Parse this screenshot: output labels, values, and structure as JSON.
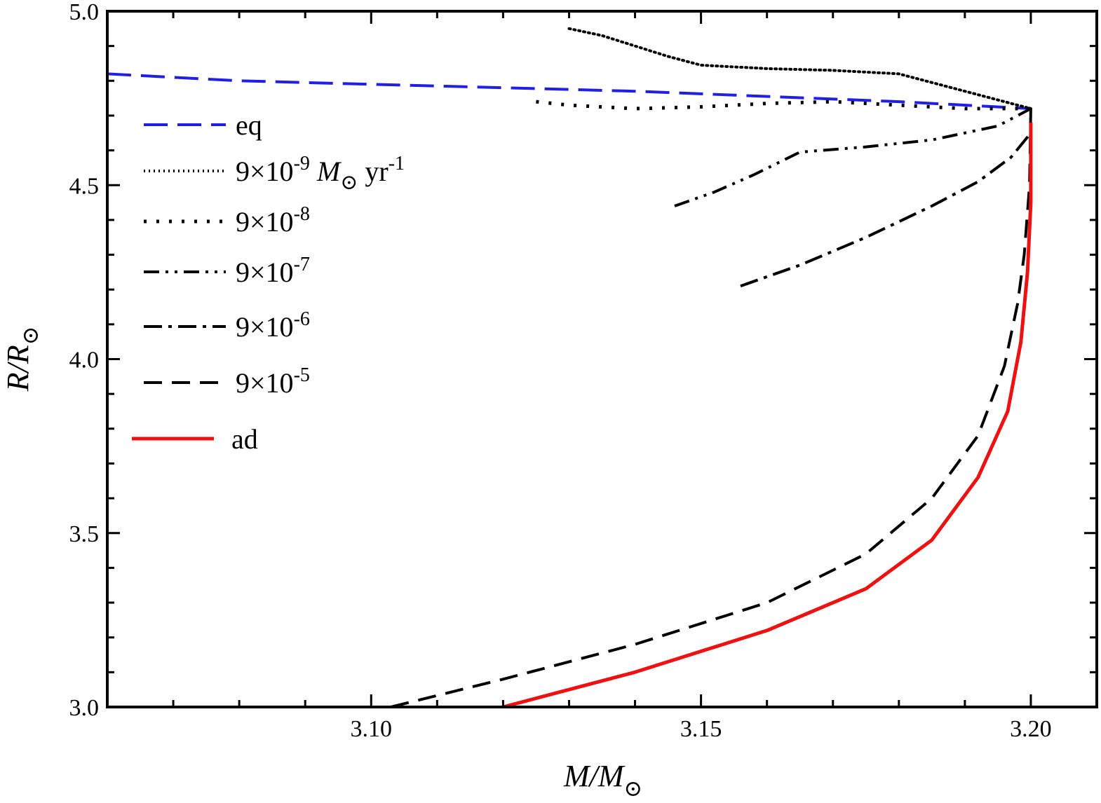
{
  "chart_data": {
    "type": "line",
    "title": "",
    "xlabel": {
      "main": "M/M",
      "sub": "⊙"
    },
    "ylabel": {
      "main": "R/R",
      "sub": "⊙"
    },
    "xlim": [
      3.06,
      3.21
    ],
    "ylim": [
      3.0,
      5.0
    ],
    "grid": false,
    "legend_position": "upper-left",
    "x_ticks": [
      {
        "value": 3.1,
        "label": "3.10"
      },
      {
        "value": 3.15,
        "label": "3.15"
      },
      {
        "value": 3.2,
        "label": "3.20"
      }
    ],
    "y_ticks": [
      {
        "value": 3.0,
        "label": "3.0"
      },
      {
        "value": 3.5,
        "label": "3.5"
      },
      {
        "value": 4.0,
        "label": "4.0"
      },
      {
        "value": 4.5,
        "label": "4.5"
      },
      {
        "value": 5.0,
        "label": "5.0"
      }
    ],
    "series": [
      {
        "name": "eq",
        "legend": {
          "base": "eq"
        },
        "color": "#1f1fe6",
        "dash": "34,14",
        "width": 4,
        "x": [
          3.06,
          3.08,
          3.1,
          3.12,
          3.14,
          3.16,
          3.18,
          3.2
        ],
        "y": [
          4.82,
          4.8,
          4.79,
          4.78,
          4.77,
          4.755,
          4.74,
          4.72
        ]
      },
      {
        "name": "9e-9",
        "legend": {
          "base": "9×10",
          "exp": "-9",
          "unit_italic": "M",
          "unit_sub": "⊙",
          "unit_rest": "yr",
          "unit_exp": "-1"
        },
        "color": "#000000",
        "dash": "2,5",
        "width": 4,
        "x": [
          3.13,
          3.135,
          3.14,
          3.145,
          3.15,
          3.16,
          3.17,
          3.18,
          3.19,
          3.2
        ],
        "y": [
          4.95,
          4.93,
          4.9,
          4.87,
          4.845,
          4.835,
          4.83,
          4.82,
          4.77,
          4.72
        ]
      },
      {
        "name": "9e-8",
        "legend": {
          "base": "9×10",
          "exp": "-8"
        },
        "color": "#000000",
        "dash": "4,14",
        "width": 5,
        "x": [
          3.125,
          3.13,
          3.14,
          3.15,
          3.16,
          3.17,
          3.18,
          3.19,
          3.2
        ],
        "y": [
          4.74,
          4.73,
          4.72,
          4.725,
          4.735,
          4.74,
          4.73,
          4.72,
          4.72
        ]
      },
      {
        "name": "9e-7",
        "legend": {
          "base": "9×10",
          "exp": "-7"
        },
        "color": "#000000",
        "dash": "22,9,4,9,4,9",
        "width": 4,
        "x": [
          3.146,
          3.152,
          3.158,
          3.165,
          3.175,
          3.185,
          3.195,
          3.2
        ],
        "y": [
          4.44,
          4.48,
          4.53,
          4.595,
          4.61,
          4.63,
          4.67,
          4.72
        ]
      },
      {
        "name": "9e-6",
        "legend": {
          "base": "9×10",
          "exp": "-6"
        },
        "color": "#000000",
        "dash": "26,9,5,9",
        "width": 4,
        "x": [
          3.156,
          3.165,
          3.175,
          3.185,
          3.192,
          3.197,
          3.2
        ],
        "y": [
          4.21,
          4.27,
          4.35,
          4.44,
          4.51,
          4.58,
          4.65
        ]
      },
      {
        "name": "9e-5",
        "legend": {
          "base": "9×10",
          "exp": "-5"
        },
        "color": "#000000",
        "dash": "26,14",
        "width": 4,
        "x": [
          3.103,
          3.12,
          3.14,
          3.16,
          3.175,
          3.185,
          3.192,
          3.196,
          3.198,
          3.199,
          3.1998,
          3.2
        ],
        "y": [
          3.0,
          3.08,
          3.18,
          3.3,
          3.44,
          3.6,
          3.78,
          3.98,
          4.16,
          4.3,
          4.5,
          4.72
        ]
      },
      {
        "name": "ad",
        "legend": {
          "base": "ad"
        },
        "color": "#ee1111",
        "dash": "",
        "width": 5,
        "x": [
          3.12,
          3.14,
          3.16,
          3.175,
          3.185,
          3.192,
          3.1965,
          3.1985,
          3.1995,
          3.2,
          3.2
        ],
        "y": [
          3.0,
          3.1,
          3.22,
          3.34,
          3.48,
          3.66,
          3.85,
          4.05,
          4.25,
          4.45,
          4.68
        ]
      }
    ]
  }
}
